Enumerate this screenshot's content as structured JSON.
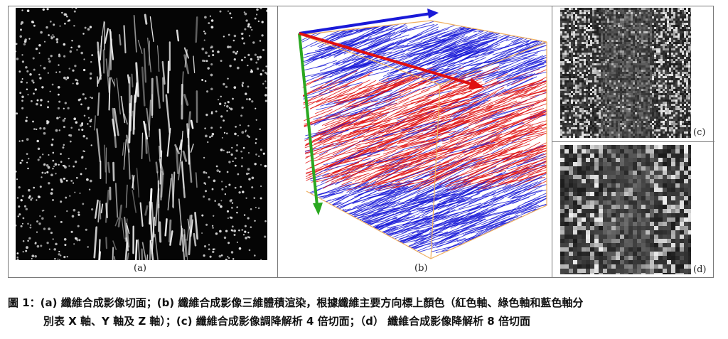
{
  "panels": {
    "a": {
      "label": "(a)",
      "background": "#050505",
      "fiber_color": "#f2f2f2"
    },
    "b": {
      "label": "(b)",
      "box_color": "#f0b060",
      "blue": "#1a1ad8",
      "red": "#e01010",
      "green": "#2aa820"
    },
    "c": {
      "label": "(c)"
    },
    "d": {
      "label": "(d)"
    }
  },
  "caption": {
    "line1": "圖 1：(a) 纖維合成影像切面；(b) 纖維合成影像三維體積渲染，根據纖維主要方向標上顏色（紅色軸、綠色軸和藍色軸分",
    "line2": "別表 X 軸、Y 軸及 Z 軸）；(c) 纖維合成影像調降解析 4 倍切面；（d） 纖維合成影像降解析 8 倍切面"
  }
}
